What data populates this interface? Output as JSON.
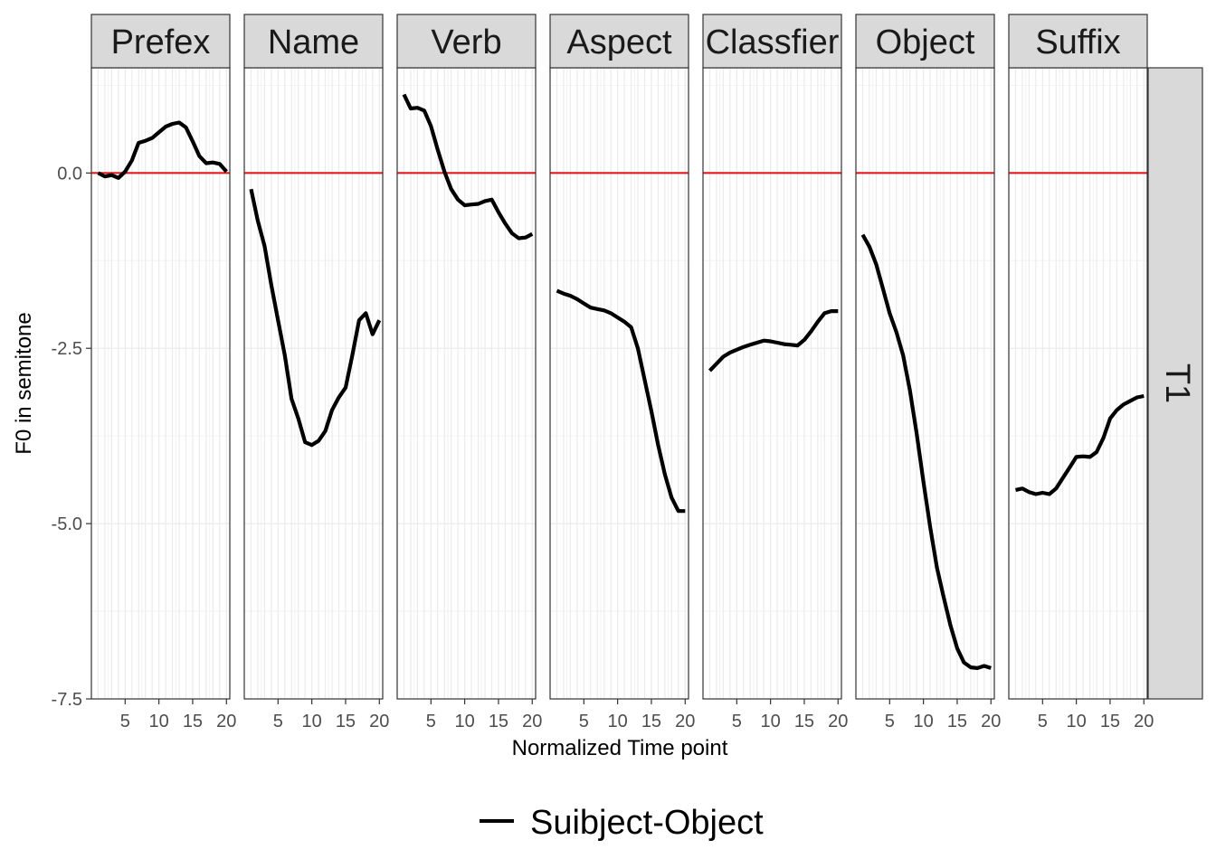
{
  "chart_data": {
    "type": "line",
    "facet_row_label": "T1",
    "xlabel": "Normalized Time point",
    "ylabel": "F0 in semitone",
    "xlim": [
      0,
      20.5
    ],
    "ylim": [
      -7.5,
      1.5
    ],
    "x_ticks": [
      5,
      10,
      15,
      20
    ],
    "y_ticks": [
      -7.5,
      -5.0,
      -2.5,
      0.0
    ],
    "y_tick_labels": [
      "-7.5",
      "-5.0",
      "-2.5",
      "0.0"
    ],
    "reference_line": {
      "y": 0.0,
      "color": "#e41a1c"
    },
    "grid": true,
    "legend": {
      "position": "bottom",
      "entries": [
        "Suibject-Object"
      ]
    },
    "series_color": "#000000",
    "x": [
      1,
      2,
      3,
      4,
      5,
      6,
      7,
      8,
      9,
      10,
      11,
      12,
      13,
      14,
      15,
      16,
      17,
      18,
      19,
      20
    ],
    "panels": [
      {
        "label": "Prefex",
        "values": [
          0.0,
          -0.05,
          -0.03,
          -0.07,
          0.02,
          0.18,
          0.43,
          0.46,
          0.5,
          0.58,
          0.66,
          0.7,
          0.72,
          0.65,
          0.45,
          0.24,
          0.14,
          0.15,
          0.13,
          0.02
        ]
      },
      {
        "label": "Name",
        "values": [
          -0.23,
          -0.68,
          -1.04,
          -1.6,
          -2.1,
          -2.6,
          -3.22,
          -3.5,
          -3.84,
          -3.88,
          -3.82,
          -3.68,
          -3.38,
          -3.2,
          -3.06,
          -2.6,
          -2.1,
          -2.0,
          -2.3,
          -2.1
        ]
      },
      {
        "label": "Verb",
        "values": [
          1.12,
          0.92,
          0.93,
          0.89,
          0.67,
          0.33,
          0.02,
          -0.23,
          -0.38,
          -0.46,
          -0.45,
          -0.44,
          -0.4,
          -0.38,
          -0.56,
          -0.72,
          -0.86,
          -0.93,
          -0.92,
          -0.87
        ]
      },
      {
        "label": "Aspect",
        "values": [
          -1.68,
          -1.72,
          -1.75,
          -1.8,
          -1.86,
          -1.92,
          -1.94,
          -1.96,
          -2.0,
          -2.06,
          -2.12,
          -2.2,
          -2.5,
          -2.95,
          -3.4,
          -3.88,
          -4.3,
          -4.63,
          -4.82,
          -4.82
        ]
      },
      {
        "label": "Classfier",
        "values": [
          -2.82,
          -2.72,
          -2.62,
          -2.56,
          -2.52,
          -2.48,
          -2.45,
          -2.42,
          -2.39,
          -2.4,
          -2.42,
          -2.44,
          -2.45,
          -2.46,
          -2.38,
          -2.26,
          -2.12,
          -2.0,
          -1.97,
          -1.97
        ]
      },
      {
        "label": "Object",
        "values": [
          -0.88,
          -1.05,
          -1.3,
          -1.65,
          -2.0,
          -2.27,
          -2.6,
          -3.1,
          -3.72,
          -4.4,
          -5.05,
          -5.63,
          -6.05,
          -6.45,
          -6.78,
          -6.98,
          -7.05,
          -7.06,
          -7.03,
          -7.06
        ]
      },
      {
        "label": "Suffix",
        "values": [
          -4.52,
          -4.5,
          -4.55,
          -4.58,
          -4.56,
          -4.58,
          -4.5,
          -4.35,
          -4.2,
          -4.05,
          -4.04,
          -4.05,
          -3.98,
          -3.78,
          -3.5,
          -3.38,
          -3.3,
          -3.25,
          -3.2,
          -3.18
        ]
      }
    ]
  }
}
